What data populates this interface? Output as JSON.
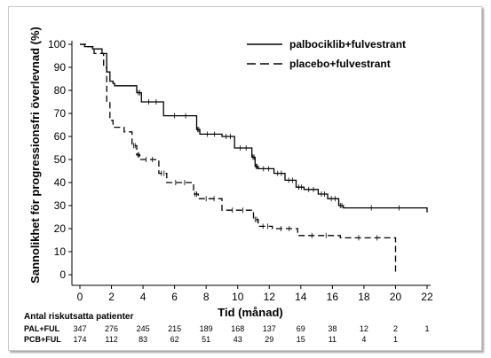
{
  "chart_data": {
    "type": "line",
    "xlabel": "Tid (månad)",
    "ylabel": "Sannolikhet för progressionsfri överlevnad (%)",
    "xlim": [
      0,
      22
    ],
    "ylim": [
      0,
      100
    ],
    "x_ticks": [
      "0",
      "2",
      "4",
      "6",
      "8",
      "10",
      "12",
      "14",
      "16",
      "18",
      "20",
      "22"
    ],
    "y_ticks": [
      "0",
      "10",
      "20",
      "30",
      "40",
      "50",
      "60",
      "70",
      "80",
      "90",
      "100"
    ],
    "legend_position": "top-right",
    "series": [
      {
        "name": "palbociklib+fulvestrant",
        "style": "solid",
        "x": [
          0,
          0.3,
          0.8,
          1.4,
          1.7,
          1.9,
          2.1,
          2.2,
          3.6,
          3.9,
          5.3,
          7.4,
          7.6,
          9.0,
          9.8,
          10.9,
          11.1,
          11.3,
          12.3,
          13.0,
          13.7,
          14.2,
          15.1,
          15.7,
          16.4,
          16.7,
          22.0
        ],
        "y": [
          100,
          99,
          98,
          96,
          88,
          84,
          83,
          82,
          79,
          75,
          69,
          63,
          61,
          60,
          55,
          51,
          47,
          46,
          44,
          41,
          38,
          37,
          35,
          33,
          30,
          29,
          27
        ]
      },
      {
        "name": "placebo+fulvestrant",
        "style": "dashed",
        "x": [
          0,
          0.4,
          0.9,
          1.5,
          1.7,
          1.9,
          2.1,
          2.8,
          3.3,
          3.6,
          3.8,
          5.0,
          5.5,
          7.2,
          7.5,
          9.0,
          11.0,
          11.3,
          12.2,
          13.8,
          16.5,
          20.0
        ],
        "y": [
          100,
          99,
          96,
          90,
          75,
          67,
          64,
          62,
          56,
          52,
          50,
          44,
          40,
          35,
          33,
          28,
          24,
          21,
          20,
          17,
          16,
          15
        ]
      }
    ],
    "risk_table": {
      "title": "Antal riskutsatta patienter",
      "timepoints": [
        0,
        2,
        4,
        6,
        8,
        10,
        12,
        14,
        16,
        18,
        20,
        22
      ],
      "rows": [
        {
          "label": "PAL+FUL",
          "values": [
            "347",
            "276",
            "245",
            "215",
            "189",
            "168",
            "137",
            "69",
            "38",
            "12",
            "2",
            "1"
          ]
        },
        {
          "label": "PCB+FUL",
          "values": [
            "174",
            "112",
            "83",
            "62",
            "51",
            "43",
            "29",
            "15",
            "11",
            "4",
            "1",
            ""
          ]
        }
      ]
    },
    "colors": {
      "line": "#000000",
      "frame_border": "#c8c8c8"
    }
  }
}
